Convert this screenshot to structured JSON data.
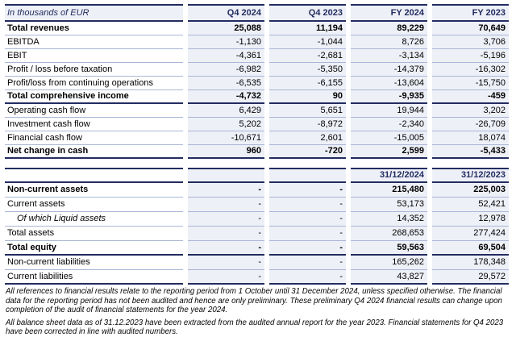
{
  "table": {
    "unit_label": "In thousands of EUR",
    "columns": [
      "Q4 2024",
      "Q4 2023",
      "FY 2024",
      "FY 2023"
    ],
    "income_rows": [
      {
        "label": "Total revenues",
        "values": [
          "25,088",
          "11,194",
          "89,229",
          "70,649"
        ],
        "bold": true
      },
      {
        "label": "EBITDA",
        "values": [
          "-1,130",
          "-1,044",
          "8,726",
          "3,706"
        ]
      },
      {
        "label": "EBIT",
        "values": [
          "-4,361",
          "-2,681",
          "-3,134",
          "-5,196"
        ]
      },
      {
        "label": "Profit / loss before taxation",
        "values": [
          "-6,982",
          "-5,350",
          "-14,379",
          "-16,302"
        ]
      },
      {
        "label": "Profit/loss from continuing operations",
        "values": [
          "-6,535",
          "-6,155",
          "-13,604",
          "-15,750"
        ]
      },
      {
        "label": "Total comprehensive income",
        "values": [
          "-4,732",
          "90",
          "-9,935",
          "-459"
        ],
        "bold": true,
        "thick": true
      },
      {
        "label": "Operating cash flow",
        "values": [
          "6,429",
          "5,651",
          "19,944",
          "3,202"
        ]
      },
      {
        "label": "Investment cash flow",
        "values": [
          "5,202",
          "-8,972",
          "-2,340",
          "-26,709"
        ]
      },
      {
        "label": "Financial cash flow",
        "values": [
          "-10,671",
          "2,601",
          "-15,005",
          "18,074"
        ]
      },
      {
        "label": "Net change in cash",
        "values": [
          "960",
          "-720",
          "2,599",
          "-5,433"
        ],
        "bold": true,
        "thick": true
      }
    ],
    "balance_header": {
      "labels": [
        "",
        "",
        "31/12/2024",
        "31/12/2023"
      ]
    },
    "balance_rows": [
      {
        "label": "Non-current assets",
        "values": [
          "-",
          "-",
          "215,480",
          "225,003"
        ],
        "bold": true
      },
      {
        "label": "Current assets",
        "values": [
          "-",
          "-",
          "53,173",
          "52,421"
        ]
      },
      {
        "label": "Of which Liquid assets",
        "values": [
          "-",
          "-",
          "14,352",
          "12,978"
        ],
        "indent": true
      },
      {
        "label": "Total assets",
        "values": [
          "-",
          "-",
          "268,653",
          "277,424"
        ]
      },
      {
        "label": "Total equity",
        "values": [
          "-",
          "-",
          "59,563",
          "69,504"
        ],
        "bold": true,
        "thick": true
      },
      {
        "label": "Non-current liabilities",
        "values": [
          "-",
          "-",
          "165,262",
          "178,348"
        ]
      },
      {
        "label": "Current liabilities",
        "values": [
          "-",
          "-",
          "43,827",
          "29,572"
        ],
        "thick": true
      }
    ]
  },
  "footnotes": [
    "All references to financial results relate to the reporting period from 1 October until 31 December 2024, unless specified otherwise. The financial data for the reporting period has not been audited and hence are only preliminary. These preliminary Q4 2024 financial results can change upon completion of the audit of financial statements for the year 2024.",
    "All balance sheet data as of 31.12.2023 have been extracted from the audited annual report for the year 2023. Financial statements for Q4 2023 have been corrected in line with audited numbers."
  ],
  "colors": {
    "navy": "#222c60",
    "thin_line": "#a9b6d6",
    "cell_background": "#eef0f7"
  }
}
